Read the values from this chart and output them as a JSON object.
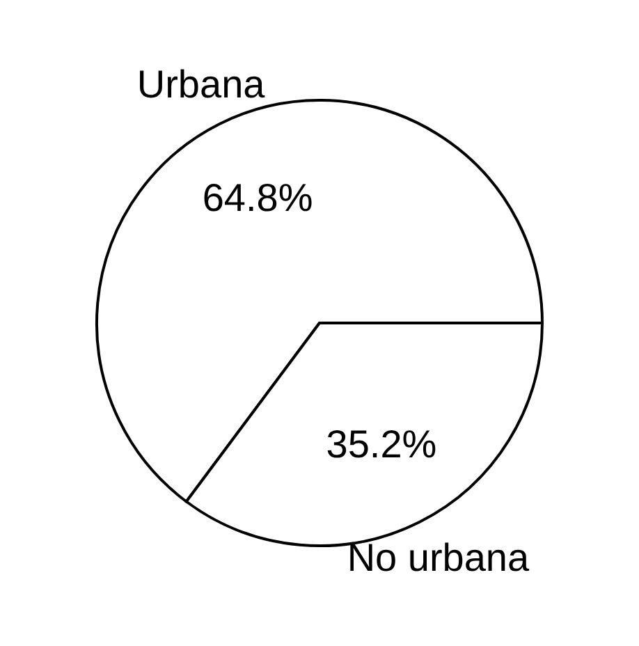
{
  "chart_data": {
    "type": "pie",
    "categories": [
      "Urbana",
      "No urbana"
    ],
    "values": [
      64.8,
      35.2
    ],
    "colors": [
      "#ffffff",
      "#ffffff"
    ],
    "value_labels": [
      "64.8%",
      "35.2%"
    ],
    "legend": false
  }
}
